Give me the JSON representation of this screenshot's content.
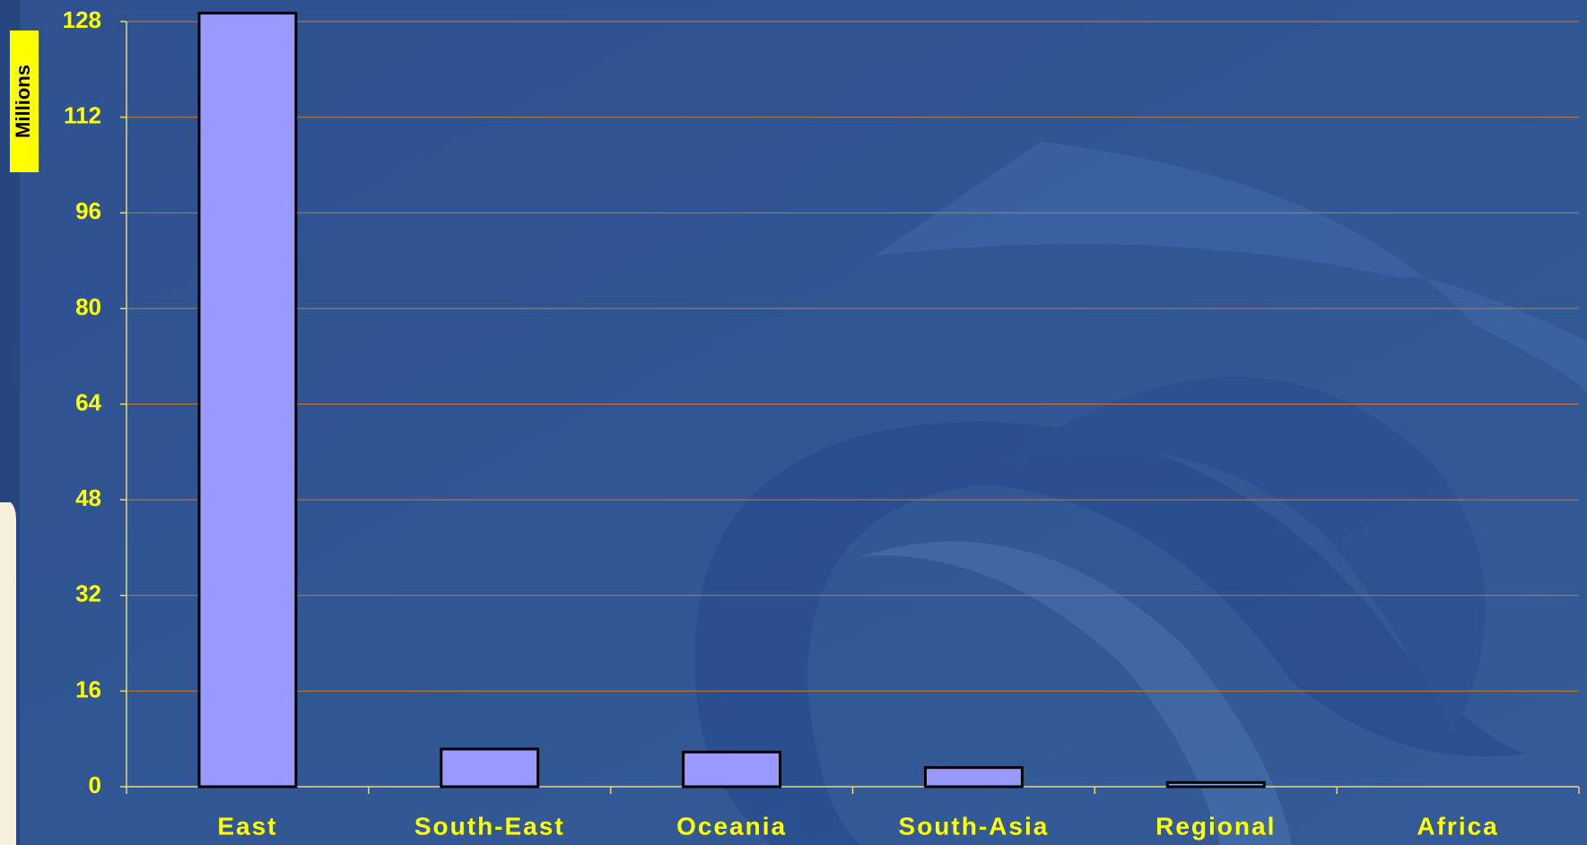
{
  "chart_data": {
    "type": "bar",
    "y_label": "Millions",
    "categories": [
      "East",
      "South-East",
      "Oceania",
      "South-Asia",
      "Regional",
      "Africa"
    ],
    "values": [
      129.4,
      6.3,
      5.8,
      3.2,
      0.7,
      0
    ],
    "color": "#9999ff",
    "ylim": [
      0,
      128
    ],
    "yticks": [
      0,
      16,
      32,
      48,
      64,
      80,
      96,
      112,
      128
    ],
    "grid": true
  }
}
